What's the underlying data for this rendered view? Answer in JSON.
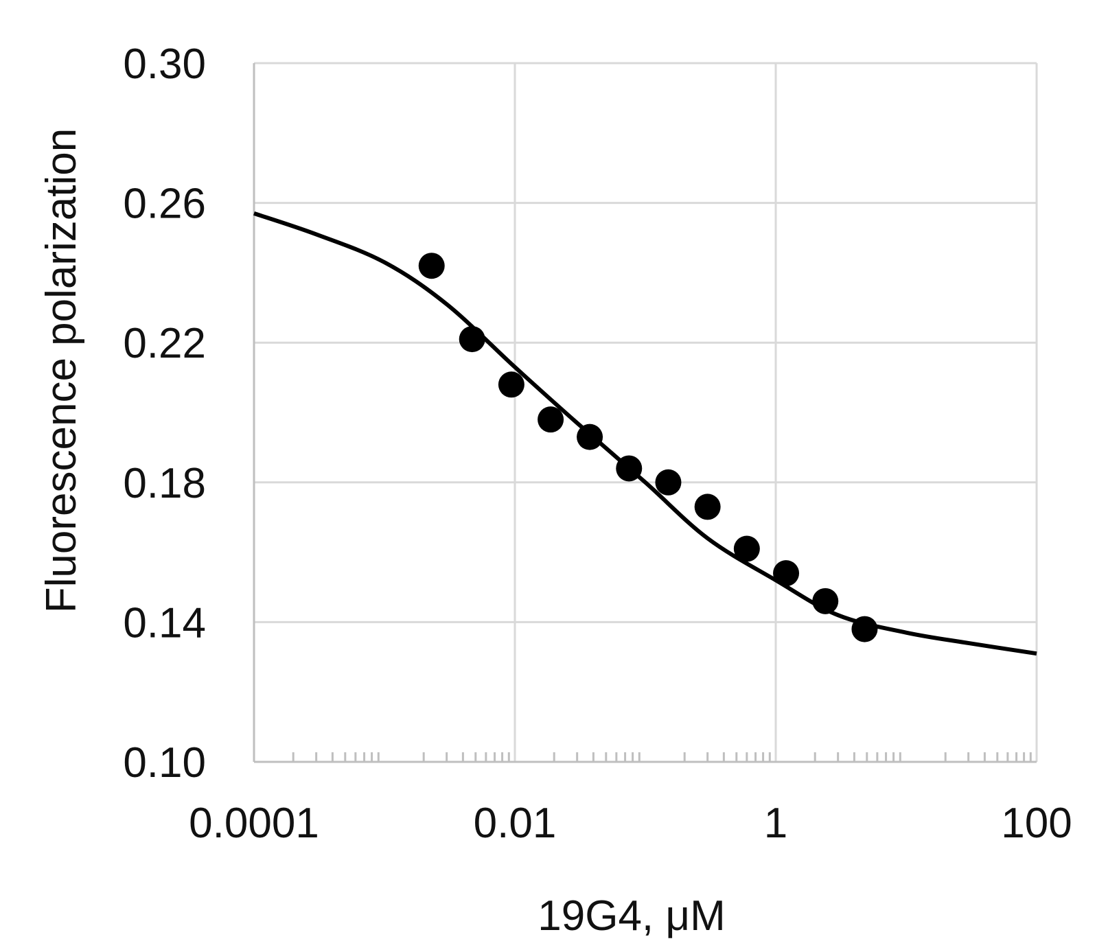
{
  "chart_data": {
    "type": "scatter",
    "xlabel": "19G4, μM",
    "ylabel": "Fluorescence polarization",
    "x_scale": "log",
    "xlim": [
      0.0001,
      100
    ],
    "ylim": [
      0.1,
      0.3
    ],
    "x_ticks": [
      "0.0001",
      "0.01",
      "1",
      "100"
    ],
    "y_ticks": [
      "0.10",
      "0.14",
      "0.18",
      "0.22",
      "0.26",
      "0.30"
    ],
    "grid": true,
    "series": [
      {
        "kind": "points",
        "x": [
          0.0023,
          0.0047,
          0.0094,
          0.0188,
          0.0375,
          0.075,
          0.15,
          0.3,
          0.6,
          1.2,
          2.4,
          4.8
        ],
        "y": [
          0.242,
          0.221,
          0.208,
          0.198,
          0.193,
          0.184,
          0.18,
          0.173,
          0.161,
          0.154,
          0.146,
          0.138
        ]
      },
      {
        "kind": "fit-curve",
        "x": [
          0.0001,
          0.0003,
          0.001,
          0.003,
          0.01,
          0.03,
          0.1,
          0.3,
          1,
          3,
          10,
          30,
          100
        ],
        "y": [
          0.257,
          0.251,
          0.243,
          0.231,
          0.213,
          0.197,
          0.18,
          0.164,
          0.152,
          0.142,
          0.137,
          0.134,
          0.131
        ]
      }
    ],
    "colors": {
      "points": "#000000",
      "curve": "#000000",
      "grid": "#d9d9d9",
      "axis": "#bfbfbf"
    }
  }
}
